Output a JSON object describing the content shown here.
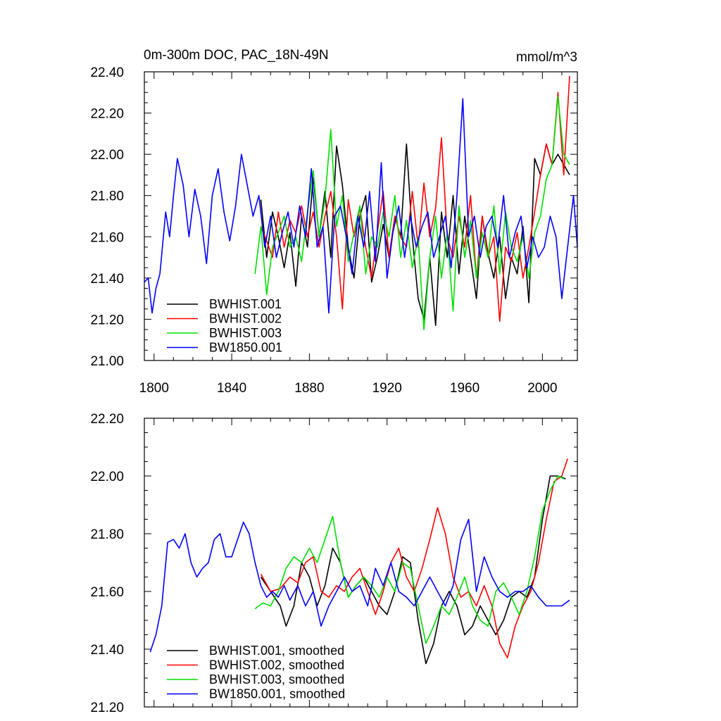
{
  "colors": {
    "black": "#000000",
    "red": "#ff0000",
    "green": "#00e000",
    "blue": "#0000ff"
  },
  "chart_data": [
    {
      "type": "line",
      "title": "0m-300m DOC, PAC_18N-49N",
      "units": "mmol/m^3",
      "xlabel": "",
      "ylabel": "",
      "xlim": [
        1795,
        2018
      ],
      "ylim": [
        21.0,
        22.4
      ],
      "xticks": [
        1800,
        1840,
        1880,
        1920,
        1960,
        2000
      ],
      "yticks": [
        21.0,
        21.2,
        21.4,
        21.6,
        21.8,
        22.0,
        22.2,
        22.4
      ],
      "ytick_labels": [
        "21.00",
        "21.20",
        "21.40",
        "21.60",
        "21.80",
        "22.00",
        "22.20",
        "22.40"
      ],
      "xtick_labels": [
        "1800",
        "1840",
        "1880",
        "1920",
        "1960",
        "2000"
      ],
      "legend_position": "bottom-left",
      "series": [
        {
          "name": "BWHIST.001",
          "color": "#000000",
          "x": [
            1855,
            1858,
            1861,
            1864,
            1867,
            1870,
            1873,
            1876,
            1879,
            1882,
            1885,
            1888,
            1891,
            1894,
            1897,
            1900,
            1903,
            1906,
            1909,
            1912,
            1915,
            1918,
            1921,
            1924,
            1927,
            1930,
            1933,
            1936,
            1939,
            1942,
            1945,
            1948,
            1951,
            1954,
            1957,
            1960,
            1963,
            1966,
            1969,
            1972,
            1975,
            1978,
            1981,
            1984,
            1987,
            1990,
            1993,
            1996,
            1999,
            2002,
            2005,
            2008,
            2011,
            2014
          ],
          "y": [
            21.78,
            21.5,
            21.72,
            21.6,
            21.45,
            21.62,
            21.36,
            21.7,
            21.55,
            21.89,
            21.6,
            21.82,
            21.5,
            22.04,
            21.85,
            21.55,
            21.4,
            21.7,
            21.8,
            21.38,
            21.5,
            21.66,
            21.5,
            21.7,
            21.6,
            22.05,
            21.6,
            21.3,
            21.2,
            21.5,
            21.17,
            21.72,
            21.5,
            21.8,
            21.42,
            21.7,
            21.5,
            21.3,
            21.7,
            21.52,
            21.4,
            21.6,
            21.3,
            21.5,
            21.42,
            21.65,
            21.28,
            21.98,
            21.9,
            22.05,
            21.95,
            22.0,
            21.95,
            21.9
          ]
        },
        {
          "name": "BWHIST.002",
          "color": "#ff0000",
          "x": [
            1855,
            1858,
            1861,
            1864,
            1867,
            1870,
            1873,
            1876,
            1879,
            1882,
            1885,
            1888,
            1891,
            1894,
            1897,
            1900,
            1903,
            1906,
            1909,
            1912,
            1915,
            1918,
            1921,
            1924,
            1927,
            1930,
            1933,
            1936,
            1939,
            1942,
            1945,
            1948,
            1951,
            1954,
            1957,
            1960,
            1963,
            1966,
            1969,
            1972,
            1975,
            1978,
            1981,
            1984,
            1987,
            1990,
            1993,
            1996,
            1999,
            2002,
            2005,
            2008,
            2011,
            2014
          ],
          "y": [
            21.65,
            21.58,
            21.5,
            21.72,
            21.55,
            21.68,
            21.62,
            21.75,
            21.6,
            21.72,
            21.55,
            21.7,
            21.82,
            21.6,
            21.25,
            21.78,
            21.6,
            21.74,
            21.55,
            21.4,
            21.62,
            21.82,
            21.5,
            21.7,
            21.6,
            21.55,
            21.82,
            21.55,
            21.86,
            21.6,
            21.74,
            22.08,
            21.6,
            21.5,
            21.7,
            21.55,
            21.8,
            21.4,
            21.7,
            21.5,
            21.6,
            21.19,
            21.55,
            21.48,
            21.62,
            21.4,
            21.55,
            21.72,
            21.9,
            22.05,
            21.95,
            22.3,
            21.9,
            22.38
          ]
        },
        {
          "name": "BWHIST.003",
          "color": "#00e000",
          "x": [
            1852,
            1855,
            1858,
            1861,
            1864,
            1867,
            1870,
            1873,
            1876,
            1879,
            1882,
            1885,
            1888,
            1891,
            1894,
            1897,
            1900,
            1903,
            1906,
            1909,
            1912,
            1915,
            1918,
            1921,
            1924,
            1927,
            1930,
            1933,
            1936,
            1939,
            1942,
            1945,
            1948,
            1951,
            1954,
            1957,
            1960,
            1963,
            1966,
            1969,
            1972,
            1975,
            1978,
            1981,
            1984,
            1987,
            1990,
            1993,
            1996,
            1999,
            2002,
            2005,
            2008,
            2011,
            2014
          ],
          "y": [
            21.42,
            21.65,
            21.32,
            21.55,
            21.62,
            21.7,
            21.55,
            21.6,
            21.48,
            21.72,
            21.92,
            21.6,
            21.78,
            22.12,
            21.65,
            21.8,
            21.48,
            21.62,
            21.75,
            21.42,
            21.6,
            21.55,
            21.72,
            21.6,
            21.8,
            21.5,
            21.68,
            21.45,
            21.6,
            21.15,
            21.5,
            21.7,
            21.4,
            21.62,
            21.24,
            21.75,
            21.5,
            21.68,
            21.4,
            21.62,
            21.5,
            21.75,
            21.42,
            21.72,
            21.55,
            21.48,
            21.6,
            21.4,
            21.62,
            21.7,
            21.88,
            21.95,
            22.28,
            22.0,
            21.95
          ]
        },
        {
          "name": "BW1850.001",
          "color": "#0000ff",
          "x": [
            1795,
            1797,
            1799,
            1801,
            1803,
            1806,
            1808,
            1810,
            1812,
            1815,
            1818,
            1821,
            1824,
            1827,
            1830,
            1833,
            1836,
            1839,
            1842,
            1845,
            1848,
            1851,
            1854,
            1857,
            1860,
            1863,
            1866,
            1869,
            1872,
            1875,
            1878,
            1881,
            1884,
            1887,
            1890,
            1893,
            1896,
            1899,
            1902,
            1905,
            1908,
            1911,
            1914,
            1917,
            1920,
            1923,
            1926,
            1929,
            1932,
            1935,
            1938,
            1941,
            1944,
            1947,
            1950,
            1953,
            1956,
            1959,
            1962,
            1965,
            1968,
            1971,
            1974,
            1977,
            1980,
            1983,
            1986,
            1989,
            1992,
            1995,
            1998,
            2001,
            2004,
            2007,
            2010,
            2013,
            2016,
            2018
          ],
          "y": [
            21.38,
            21.4,
            21.23,
            21.35,
            21.42,
            21.72,
            21.6,
            21.8,
            21.98,
            21.85,
            21.6,
            21.83,
            21.7,
            21.47,
            21.8,
            21.93,
            21.72,
            21.58,
            21.75,
            22.0,
            21.85,
            21.7,
            21.8,
            21.55,
            21.7,
            21.5,
            21.62,
            21.72,
            21.55,
            21.75,
            21.6,
            21.93,
            21.55,
            21.65,
            21.23,
            21.7,
            21.75,
            21.6,
            21.42,
            21.7,
            21.55,
            21.82,
            21.48,
            21.96,
            21.4,
            21.62,
            21.75,
            21.5,
            21.7,
            21.55,
            21.65,
            21.72,
            21.5,
            21.6,
            21.7,
            21.45,
            21.8,
            22.27,
            21.6,
            21.7,
            21.5,
            21.65,
            21.7,
            21.55,
            21.8,
            21.5,
            21.62,
            21.7,
            21.45,
            21.6,
            21.5,
            21.55,
            21.7,
            21.6,
            21.3,
            21.55,
            21.8,
            21.55
          ]
        }
      ]
    },
    {
      "type": "line",
      "title": "",
      "xlabel": "",
      "ylabel": "",
      "xlim": [
        1795,
        2018
      ],
      "ylim": [
        21.2,
        22.2
      ],
      "xticks": [
        1800,
        1840,
        1880,
        1920,
        1960,
        2000
      ],
      "yticks": [
        21.2,
        21.4,
        21.6,
        21.8,
        22.0,
        22.2
      ],
      "ytick_labels": [
        "21.20",
        "21.40",
        "21.60",
        "21.80",
        "22.00",
        "22.20"
      ],
      "legend_position": "bottom-left",
      "series": [
        {
          "name": "BWHIST.001, smoothed",
          "color": "#000000",
          "x": [
            1855,
            1860,
            1865,
            1868,
            1872,
            1876,
            1880,
            1884,
            1888,
            1892,
            1896,
            1900,
            1904,
            1908,
            1912,
            1916,
            1920,
            1924,
            1928,
            1932,
            1936,
            1940,
            1944,
            1948,
            1952,
            1956,
            1960,
            1964,
            1968,
            1972,
            1976,
            1980,
            1984,
            1988,
            1992,
            1996,
            2000,
            2004,
            2008,
            2012
          ],
          "y": [
            21.65,
            21.6,
            21.55,
            21.48,
            21.55,
            21.7,
            21.65,
            21.55,
            21.62,
            21.75,
            21.7,
            21.58,
            21.62,
            21.65,
            21.6,
            21.55,
            21.52,
            21.6,
            21.72,
            21.7,
            21.5,
            21.35,
            21.42,
            21.55,
            21.6,
            21.55,
            21.45,
            21.48,
            21.55,
            21.5,
            21.45,
            21.5,
            21.58,
            21.6,
            21.58,
            21.65,
            21.85,
            22.0,
            22.0,
            21.99
          ]
        },
        {
          "name": "BWHIST.002, smoothed",
          "color": "#ff0000",
          "x": [
            1855,
            1860,
            1865,
            1870,
            1874,
            1878,
            1882,
            1886,
            1890,
            1894,
            1898,
            1902,
            1906,
            1910,
            1914,
            1918,
            1922,
            1926,
            1930,
            1934,
            1938,
            1942,
            1946,
            1950,
            1954,
            1958,
            1962,
            1966,
            1970,
            1974,
            1978,
            1982,
            1986,
            1990,
            1994,
            1998,
            2002,
            2006,
            2010,
            2013
          ],
          "y": [
            21.66,
            21.6,
            21.61,
            21.65,
            21.63,
            21.7,
            21.72,
            21.6,
            21.58,
            21.62,
            21.6,
            21.65,
            21.68,
            21.6,
            21.52,
            21.6,
            21.7,
            21.75,
            21.65,
            21.6,
            21.68,
            21.78,
            21.89,
            21.8,
            21.65,
            21.58,
            21.6,
            21.55,
            21.62,
            21.55,
            21.42,
            21.37,
            21.48,
            21.55,
            21.6,
            21.7,
            21.85,
            21.98,
            22.0,
            22.06
          ]
        },
        {
          "name": "BWHIST.003, smoothed",
          "color": "#00e000",
          "x": [
            1852,
            1856,
            1860,
            1864,
            1868,
            1872,
            1876,
            1880,
            1884,
            1888,
            1892,
            1896,
            1900,
            1904,
            1908,
            1912,
            1916,
            1920,
            1924,
            1928,
            1932,
            1936,
            1940,
            1944,
            1948,
            1952,
            1956,
            1960,
            1964,
            1968,
            1972,
            1976,
            1980,
            1984,
            1988,
            1992,
            1996,
            2000,
            2004,
            2008,
            2011
          ],
          "y": [
            21.54,
            21.56,
            21.55,
            21.6,
            21.68,
            21.72,
            21.7,
            21.75,
            21.7,
            21.78,
            21.86,
            21.7,
            21.58,
            21.62,
            21.65,
            21.62,
            21.58,
            21.65,
            21.6,
            21.7,
            21.68,
            21.55,
            21.42,
            21.48,
            21.55,
            21.52,
            21.58,
            21.65,
            21.55,
            21.5,
            21.48,
            21.6,
            21.63,
            21.58,
            21.52,
            21.6,
            21.72,
            21.88,
            21.95,
            22.0,
            21.99
          ]
        },
        {
          "name": "BW1850.001, smoothed",
          "color": "#0000ff",
          "x": [
            1798,
            1801,
            1804,
            1807,
            1810,
            1813,
            1816,
            1819,
            1822,
            1825,
            1828,
            1831,
            1834,
            1837,
            1840,
            1843,
            1846,
            1849,
            1852,
            1855,
            1858,
            1861,
            1864,
            1867,
            1870,
            1874,
            1878,
            1882,
            1886,
            1890,
            1894,
            1898,
            1902,
            1906,
            1910,
            1914,
            1918,
            1922,
            1926,
            1930,
            1934,
            1938,
            1942,
            1946,
            1950,
            1954,
            1958,
            1962,
            1966,
            1970,
            1974,
            1978,
            1982,
            1986,
            1990,
            1994,
            1998,
            2002,
            2006,
            2010,
            2014
          ],
          "y": [
            21.39,
            21.45,
            21.55,
            21.77,
            21.78,
            21.75,
            21.8,
            21.7,
            21.65,
            21.68,
            21.7,
            21.78,
            21.8,
            21.72,
            21.72,
            21.78,
            21.84,
            21.8,
            21.7,
            21.62,
            21.58,
            21.6,
            21.58,
            21.62,
            21.57,
            21.62,
            21.55,
            21.6,
            21.48,
            21.55,
            21.6,
            21.65,
            21.6,
            21.62,
            21.55,
            21.68,
            21.62,
            21.7,
            21.6,
            21.58,
            21.55,
            21.6,
            21.65,
            21.6,
            21.55,
            21.62,
            21.78,
            21.85,
            21.6,
            21.72,
            21.65,
            21.6,
            21.58,
            21.6,
            21.6,
            21.62,
            21.58,
            21.55,
            21.55,
            21.55,
            21.57
          ]
        }
      ]
    }
  ]
}
